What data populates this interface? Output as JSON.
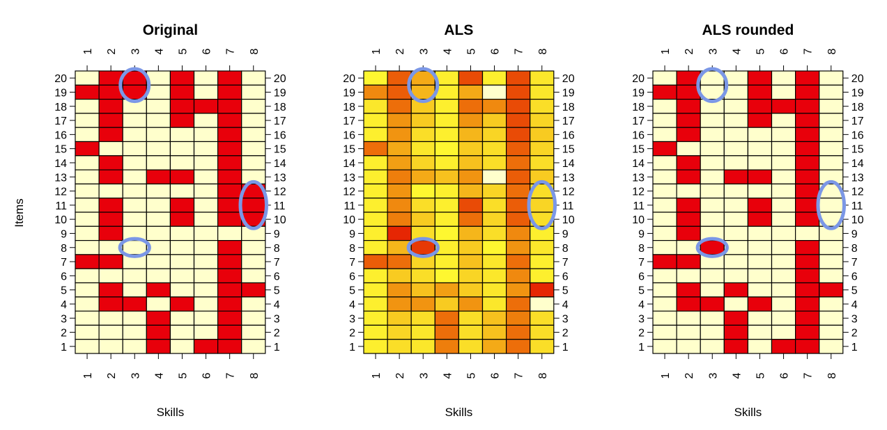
{
  "chart_data": [
    {
      "type": "heatmap",
      "title": "Original",
      "xlabel": "Skills",
      "ylabel": "Items",
      "x": [
        1,
        2,
        3,
        4,
        5,
        6,
        7,
        8
      ],
      "y": [
        20,
        19,
        18,
        17,
        16,
        15,
        14,
        13,
        12,
        11,
        10,
        9,
        8,
        7,
        6,
        5,
        4,
        3,
        2,
        1
      ],
      "values": [
        [
          0,
          1,
          1,
          0,
          1,
          0,
          1,
          0
        ],
        [
          1,
          1,
          1,
          0,
          1,
          0,
          1,
          0
        ],
        [
          0,
          1,
          0,
          0,
          1,
          1,
          1,
          0
        ],
        [
          0,
          1,
          0,
          0,
          1,
          0,
          1,
          0
        ],
        [
          0,
          1,
          0,
          0,
          0,
          0,
          1,
          0
        ],
        [
          1,
          0,
          0,
          0,
          0,
          0,
          1,
          0
        ],
        [
          0,
          1,
          0,
          0,
          0,
          0,
          1,
          0
        ],
        [
          0,
          1,
          0,
          1,
          1,
          0,
          1,
          0
        ],
        [
          0,
          0,
          0,
          0,
          0,
          0,
          1,
          1
        ],
        [
          0,
          1,
          0,
          0,
          1,
          0,
          1,
          1
        ],
        [
          0,
          1,
          0,
          0,
          1,
          0,
          1,
          1
        ],
        [
          0,
          1,
          0,
          0,
          0,
          0,
          0,
          0
        ],
        [
          0,
          0,
          0,
          0,
          0,
          0,
          1,
          0
        ],
        [
          1,
          1,
          0,
          0,
          0,
          0,
          1,
          0
        ],
        [
          0,
          0,
          0,
          0,
          0,
          0,
          1,
          0
        ],
        [
          0,
          1,
          0,
          1,
          0,
          0,
          1,
          1
        ],
        [
          0,
          1,
          1,
          0,
          1,
          0,
          1,
          0
        ],
        [
          0,
          0,
          0,
          1,
          0,
          0,
          1,
          0
        ],
        [
          0,
          0,
          0,
          1,
          0,
          0,
          1,
          0
        ],
        [
          0,
          0,
          0,
          1,
          0,
          1,
          1,
          0
        ]
      ],
      "highlights": [
        {
          "skill": 3,
          "items": [
            20,
            19
          ]
        },
        {
          "skill": 8,
          "items": [
            12,
            10
          ]
        },
        {
          "skill": 3,
          "items": [
            8,
            8
          ]
        }
      ]
    },
    {
      "type": "heatmap",
      "title": "ALS",
      "xlabel": "Skills",
      "ylabel": "",
      "x": [
        1,
        2,
        3,
        4,
        5,
        6,
        7,
        8
      ],
      "y": [
        20,
        19,
        18,
        17,
        16,
        15,
        14,
        13,
        12,
        11,
        10,
        9,
        8,
        7,
        6,
        5,
        4,
        3,
        2,
        1
      ],
      "values": [
        [
          0.05,
          0.75,
          0.45,
          0.1,
          0.8,
          0.1,
          0.8,
          0.15
        ],
        [
          0.6,
          0.75,
          0.4,
          0.1,
          0.45,
          0.0,
          0.8,
          0.15
        ],
        [
          0.15,
          0.7,
          0.3,
          0.1,
          0.7,
          0.6,
          0.8,
          0.2
        ],
        [
          0.1,
          0.55,
          0.3,
          0.1,
          0.55,
          0.3,
          0.8,
          0.25
        ],
        [
          0.1,
          0.55,
          0.2,
          0.1,
          0.4,
          0.25,
          0.8,
          0.3
        ],
        [
          0.7,
          0.45,
          0.15,
          0.05,
          0.3,
          0.2,
          0.75,
          0.25
        ],
        [
          0.1,
          0.5,
          0.25,
          0.1,
          0.35,
          0.2,
          0.7,
          0.2
        ],
        [
          0.1,
          0.65,
          0.45,
          0.35,
          0.55,
          0.0,
          0.75,
          0.3
        ],
        [
          0.1,
          0.55,
          0.05,
          0.1,
          0.4,
          0.25,
          0.7,
          0.2
        ],
        [
          0.1,
          0.6,
          0.2,
          0.1,
          0.8,
          0.2,
          0.75,
          0.25
        ],
        [
          0.1,
          0.65,
          0.3,
          0.1,
          0.7,
          0.25,
          0.75,
          0.2
        ],
        [
          0.1,
          0.9,
          0.2,
          0.05,
          0.4,
          0.2,
          0.6,
          0.1
        ],
        [
          0.1,
          0.4,
          0.85,
          0.1,
          0.3,
          0.05,
          0.55,
          0.15
        ],
        [
          0.75,
          0.7,
          0.25,
          0.1,
          0.35,
          0.15,
          0.7,
          0.1
        ],
        [
          0.1,
          0.3,
          0.2,
          0.05,
          0.25,
          0.15,
          0.6,
          0.1
        ],
        [
          0.1,
          0.55,
          0.35,
          0.5,
          0.3,
          0.15,
          0.55,
          0.9
        ],
        [
          0.1,
          0.55,
          0.55,
          0.3,
          0.55,
          0.15,
          0.7,
          0.0
        ],
        [
          0.1,
          0.3,
          0.2,
          0.7,
          0.2,
          0.35,
          0.65,
          0.2
        ],
        [
          0.1,
          0.25,
          0.15,
          0.7,
          0.2,
          0.35,
          0.7,
          0.2
        ],
        [
          0.1,
          0.2,
          0.15,
          0.65,
          0.2,
          0.45,
          0.7,
          0.2
        ]
      ],
      "highlights": [
        {
          "skill": 3,
          "items": [
            20,
            19
          ]
        },
        {
          "skill": 8,
          "items": [
            12,
            10
          ]
        },
        {
          "skill": 3,
          "items": [
            8,
            8
          ]
        }
      ]
    },
    {
      "type": "heatmap",
      "title": "ALS rounded",
      "xlabel": "Skills",
      "ylabel": "",
      "x": [
        1,
        2,
        3,
        4,
        5,
        6,
        7,
        8
      ],
      "y": [
        20,
        19,
        18,
        17,
        16,
        15,
        14,
        13,
        12,
        11,
        10,
        9,
        8,
        7,
        6,
        5,
        4,
        3,
        2,
        1
      ],
      "values": [
        [
          0,
          1,
          0,
          0,
          1,
          0,
          1,
          0
        ],
        [
          1,
          1,
          0,
          0,
          1,
          0,
          1,
          0
        ],
        [
          0,
          1,
          0,
          0,
          1,
          1,
          1,
          0
        ],
        [
          0,
          1,
          0,
          0,
          1,
          0,
          1,
          0
        ],
        [
          0,
          1,
          0,
          0,
          0,
          0,
          1,
          0
        ],
        [
          1,
          0,
          0,
          0,
          0,
          0,
          1,
          0
        ],
        [
          0,
          1,
          0,
          0,
          0,
          0,
          1,
          0
        ],
        [
          0,
          1,
          0,
          1,
          1,
          0,
          1,
          0
        ],
        [
          0,
          0,
          0,
          0,
          0,
          0,
          1,
          0
        ],
        [
          0,
          1,
          0,
          0,
          1,
          0,
          1,
          0
        ],
        [
          0,
          1,
          0,
          0,
          1,
          0,
          1,
          0
        ],
        [
          0,
          1,
          0,
          0,
          0,
          0,
          0,
          0
        ],
        [
          0,
          0,
          1,
          0,
          0,
          0,
          1,
          0
        ],
        [
          1,
          1,
          0,
          0,
          0,
          0,
          1,
          0
        ],
        [
          0,
          0,
          0,
          0,
          0,
          0,
          1,
          0
        ],
        [
          0,
          1,
          0,
          1,
          0,
          0,
          1,
          1
        ],
        [
          0,
          1,
          1,
          0,
          1,
          0,
          1,
          0
        ],
        [
          0,
          0,
          0,
          1,
          0,
          0,
          1,
          0
        ],
        [
          0,
          0,
          0,
          1,
          0,
          0,
          1,
          0
        ],
        [
          0,
          0,
          0,
          1,
          0,
          1,
          1,
          0
        ]
      ],
      "highlights": [
        {
          "skill": 3,
          "items": [
            20,
            19
          ]
        },
        {
          "skill": 8,
          "items": [
            12,
            10
          ]
        },
        {
          "skill": 3,
          "items": [
            8,
            8
          ]
        }
      ]
    }
  ],
  "colors": {
    "low": "#ffffcc",
    "high": "#e8000b",
    "heat": [
      "#ffff33",
      "#fbe42a",
      "#f7c51f",
      "#f29f14",
      "#ee7a0b",
      "#e83f05",
      "#e20000"
    ],
    "highlight": "#7b97e6",
    "grid": "#000000"
  }
}
